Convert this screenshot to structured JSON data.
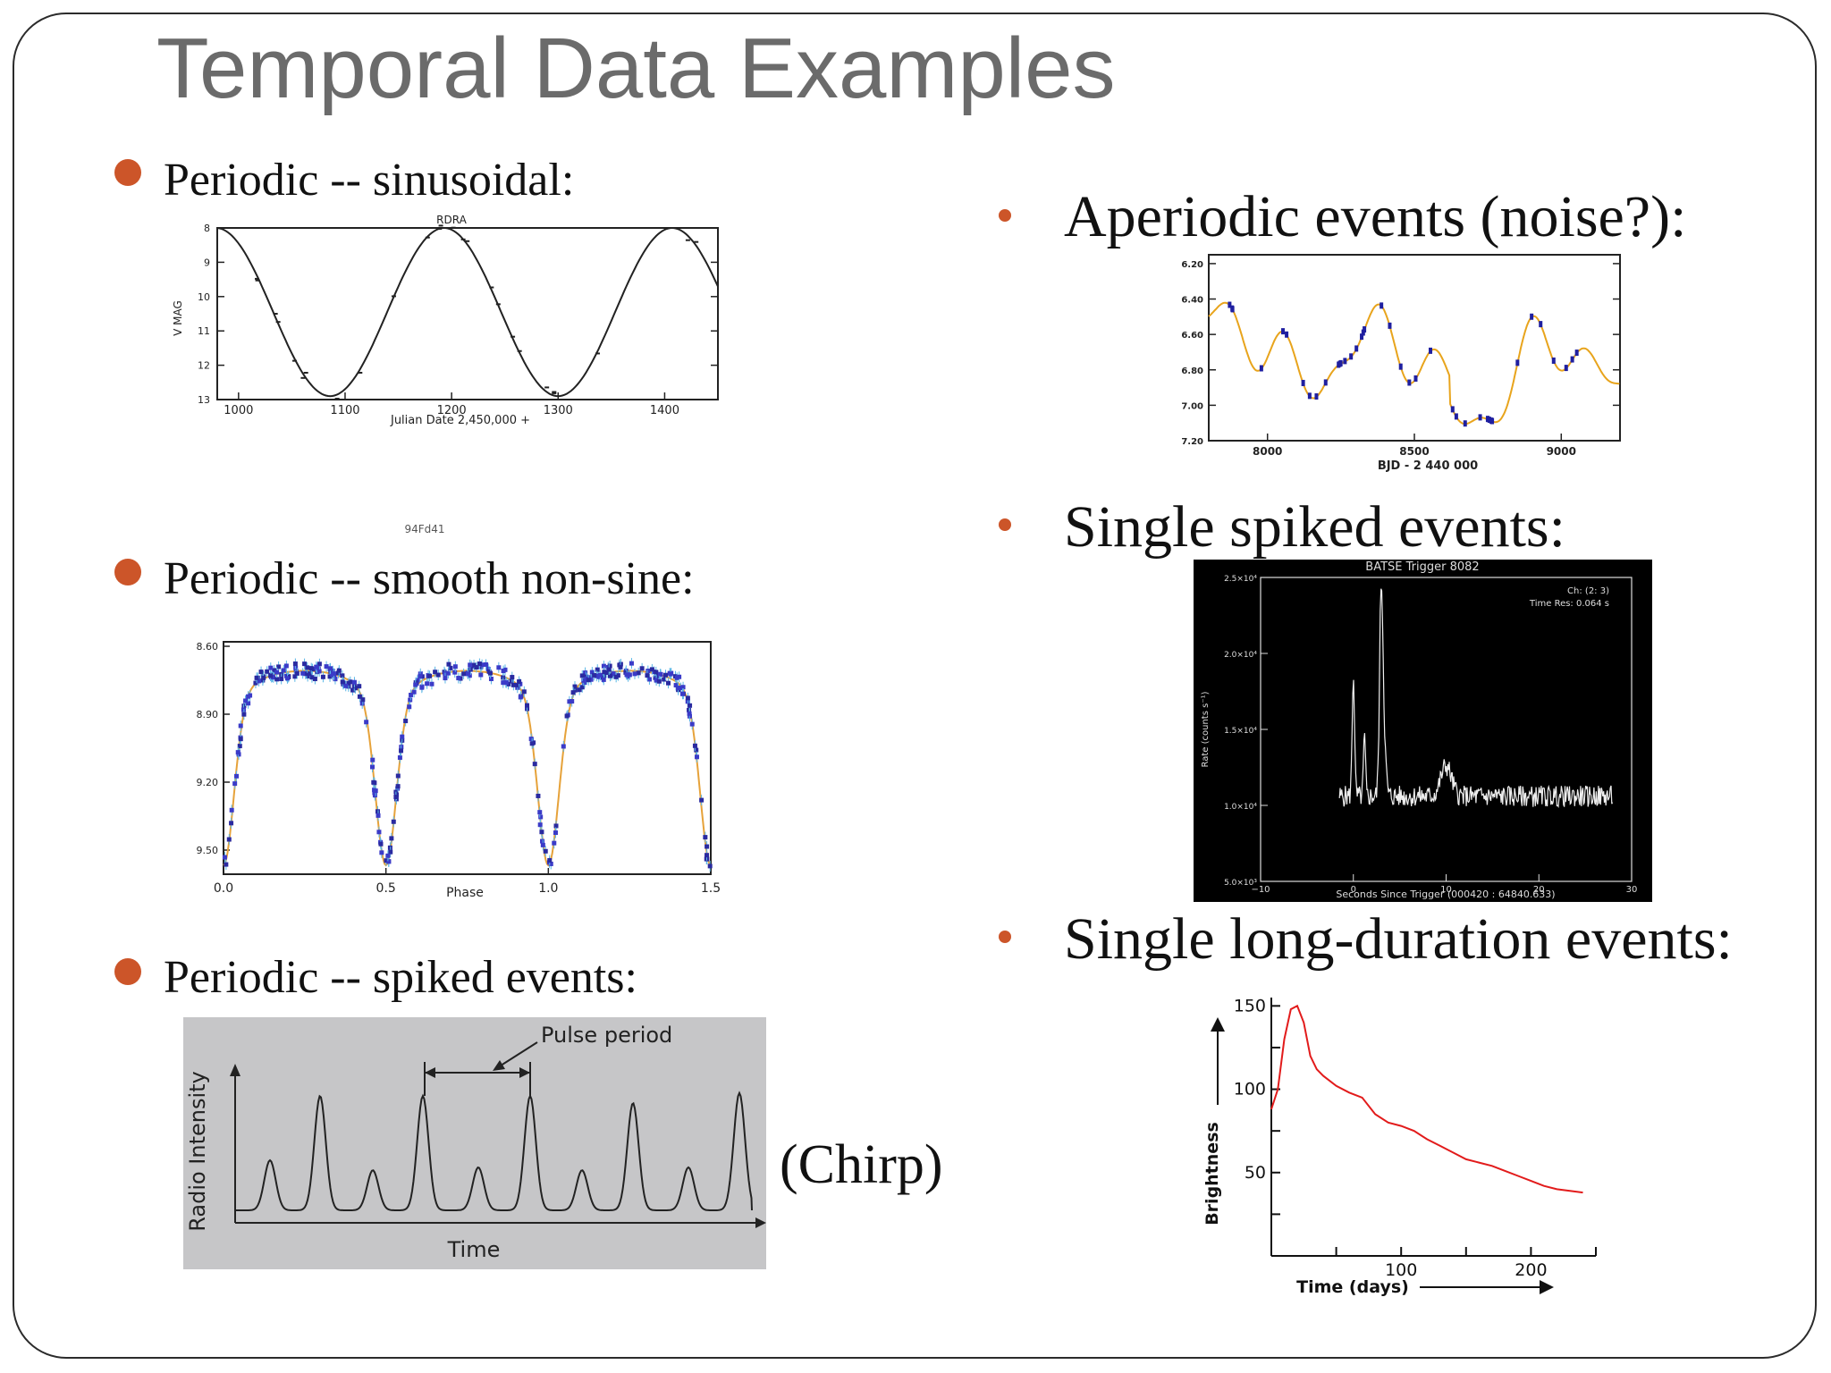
{
  "title": "Temporal Data Examples",
  "accent_color": "#cc5529",
  "bullets": {
    "periodic_sinusoidal": "Periodic -- sinusoidal:",
    "periodic_smooth": "Periodic -- smooth non-sine:",
    "periodic_spiked": "Periodic -- spiked events:",
    "aperiodic": "Aperiodic events (noise?):",
    "single_spiked": "Single spiked events:",
    "single_long": "Single long-duration events:"
  },
  "chirp_label": "(Chirp)",
  "chart_data": [
    {
      "id": "sinusoidal",
      "type": "line",
      "title": "RDRA",
      "xlabel": "Julian Date 2,450,000 +",
      "ylabel": "V MAG",
      "xlim": [
        980,
        1450
      ],
      "ylim": [
        13,
        8
      ],
      "xticks": [
        "1000",
        "1100",
        "1200",
        "1300",
        "1400"
      ],
      "yticks": [
        "8",
        "9",
        "10",
        "11",
        "12",
        "13"
      ],
      "period": 214,
      "peak_x": 1193,
      "amplitude": 2.45,
      "mean": 10.45,
      "footnote": "94Fd41"
    },
    {
      "id": "smooth_non_sine",
      "type": "scatter",
      "xlabel": "Phase",
      "xlim": [
        0,
        1.5
      ],
      "xticks": [
        "0.0",
        "0.5",
        "1.0",
        "1.5"
      ],
      "yticks": [
        "8.60",
        "8.90",
        "9.20",
        "9.50"
      ],
      "minima_phase": [
        0.0,
        0.5,
        1.0,
        1.5
      ]
    },
    {
      "id": "periodic_spiked",
      "type": "line",
      "xlabel": "Time",
      "ylabel": "Radio Intensity",
      "annotation": "Pulse period",
      "pulse_heights": [
        0.35,
        0.85,
        0.3,
        0.85,
        0.3,
        0.85,
        0.3,
        0.8,
        0.3,
        0.85
      ]
    },
    {
      "id": "aperiodic",
      "type": "line",
      "xlabel": "BJD - 2 440 000",
      "xlim": [
        7800,
        9200
      ],
      "ylim": [
        7.2,
        6.15
      ],
      "xticks": [
        "8000",
        "8500",
        "9000"
      ],
      "yticks": [
        "6.20",
        "6.40",
        "6.60",
        "6.80",
        "7.00",
        "7.20"
      ]
    },
    {
      "id": "single_spiked",
      "type": "line",
      "title": "BATSE Trigger 8082",
      "xlabel": "Seconds Since Trigger (000420 : 64840.633)",
      "ylabel": "Rate (counts s⁻¹)",
      "xlim": [
        -10,
        30
      ],
      "ylim": [
        5000,
        25000
      ],
      "xticks": [
        "−10",
        "0",
        "10",
        "20",
        "30"
      ],
      "yticks": [
        "5.0×10³",
        "1.0×10⁴",
        "1.5×10⁴",
        "2.0×10⁴",
        "2.5×10⁴"
      ],
      "annot_channel": "Ch: (2: 3)",
      "annot_res": "Time Res: 0.064 s"
    },
    {
      "id": "single_long",
      "type": "line",
      "xlabel": "Time (days)",
      "ylabel": "Brightness",
      "xlim": [
        0,
        250
      ],
      "ylim": [
        0,
        155
      ],
      "xticks": [
        "100",
        "200"
      ],
      "yticks": [
        "50",
        "100",
        "150"
      ],
      "x": [
        0,
        5,
        10,
        15,
        20,
        25,
        30,
        35,
        40,
        50,
        60,
        70,
        80,
        90,
        100,
        110,
        120,
        130,
        140,
        150,
        160,
        170,
        180,
        190,
        200,
        210,
        220,
        230,
        240
      ],
      "y": [
        88,
        100,
        130,
        148,
        150,
        140,
        120,
        112,
        108,
        102,
        98,
        95,
        85,
        80,
        78,
        75,
        70,
        66,
        62,
        58,
        56,
        54,
        51,
        48,
        45,
        42,
        40,
        39,
        38
      ]
    }
  ]
}
